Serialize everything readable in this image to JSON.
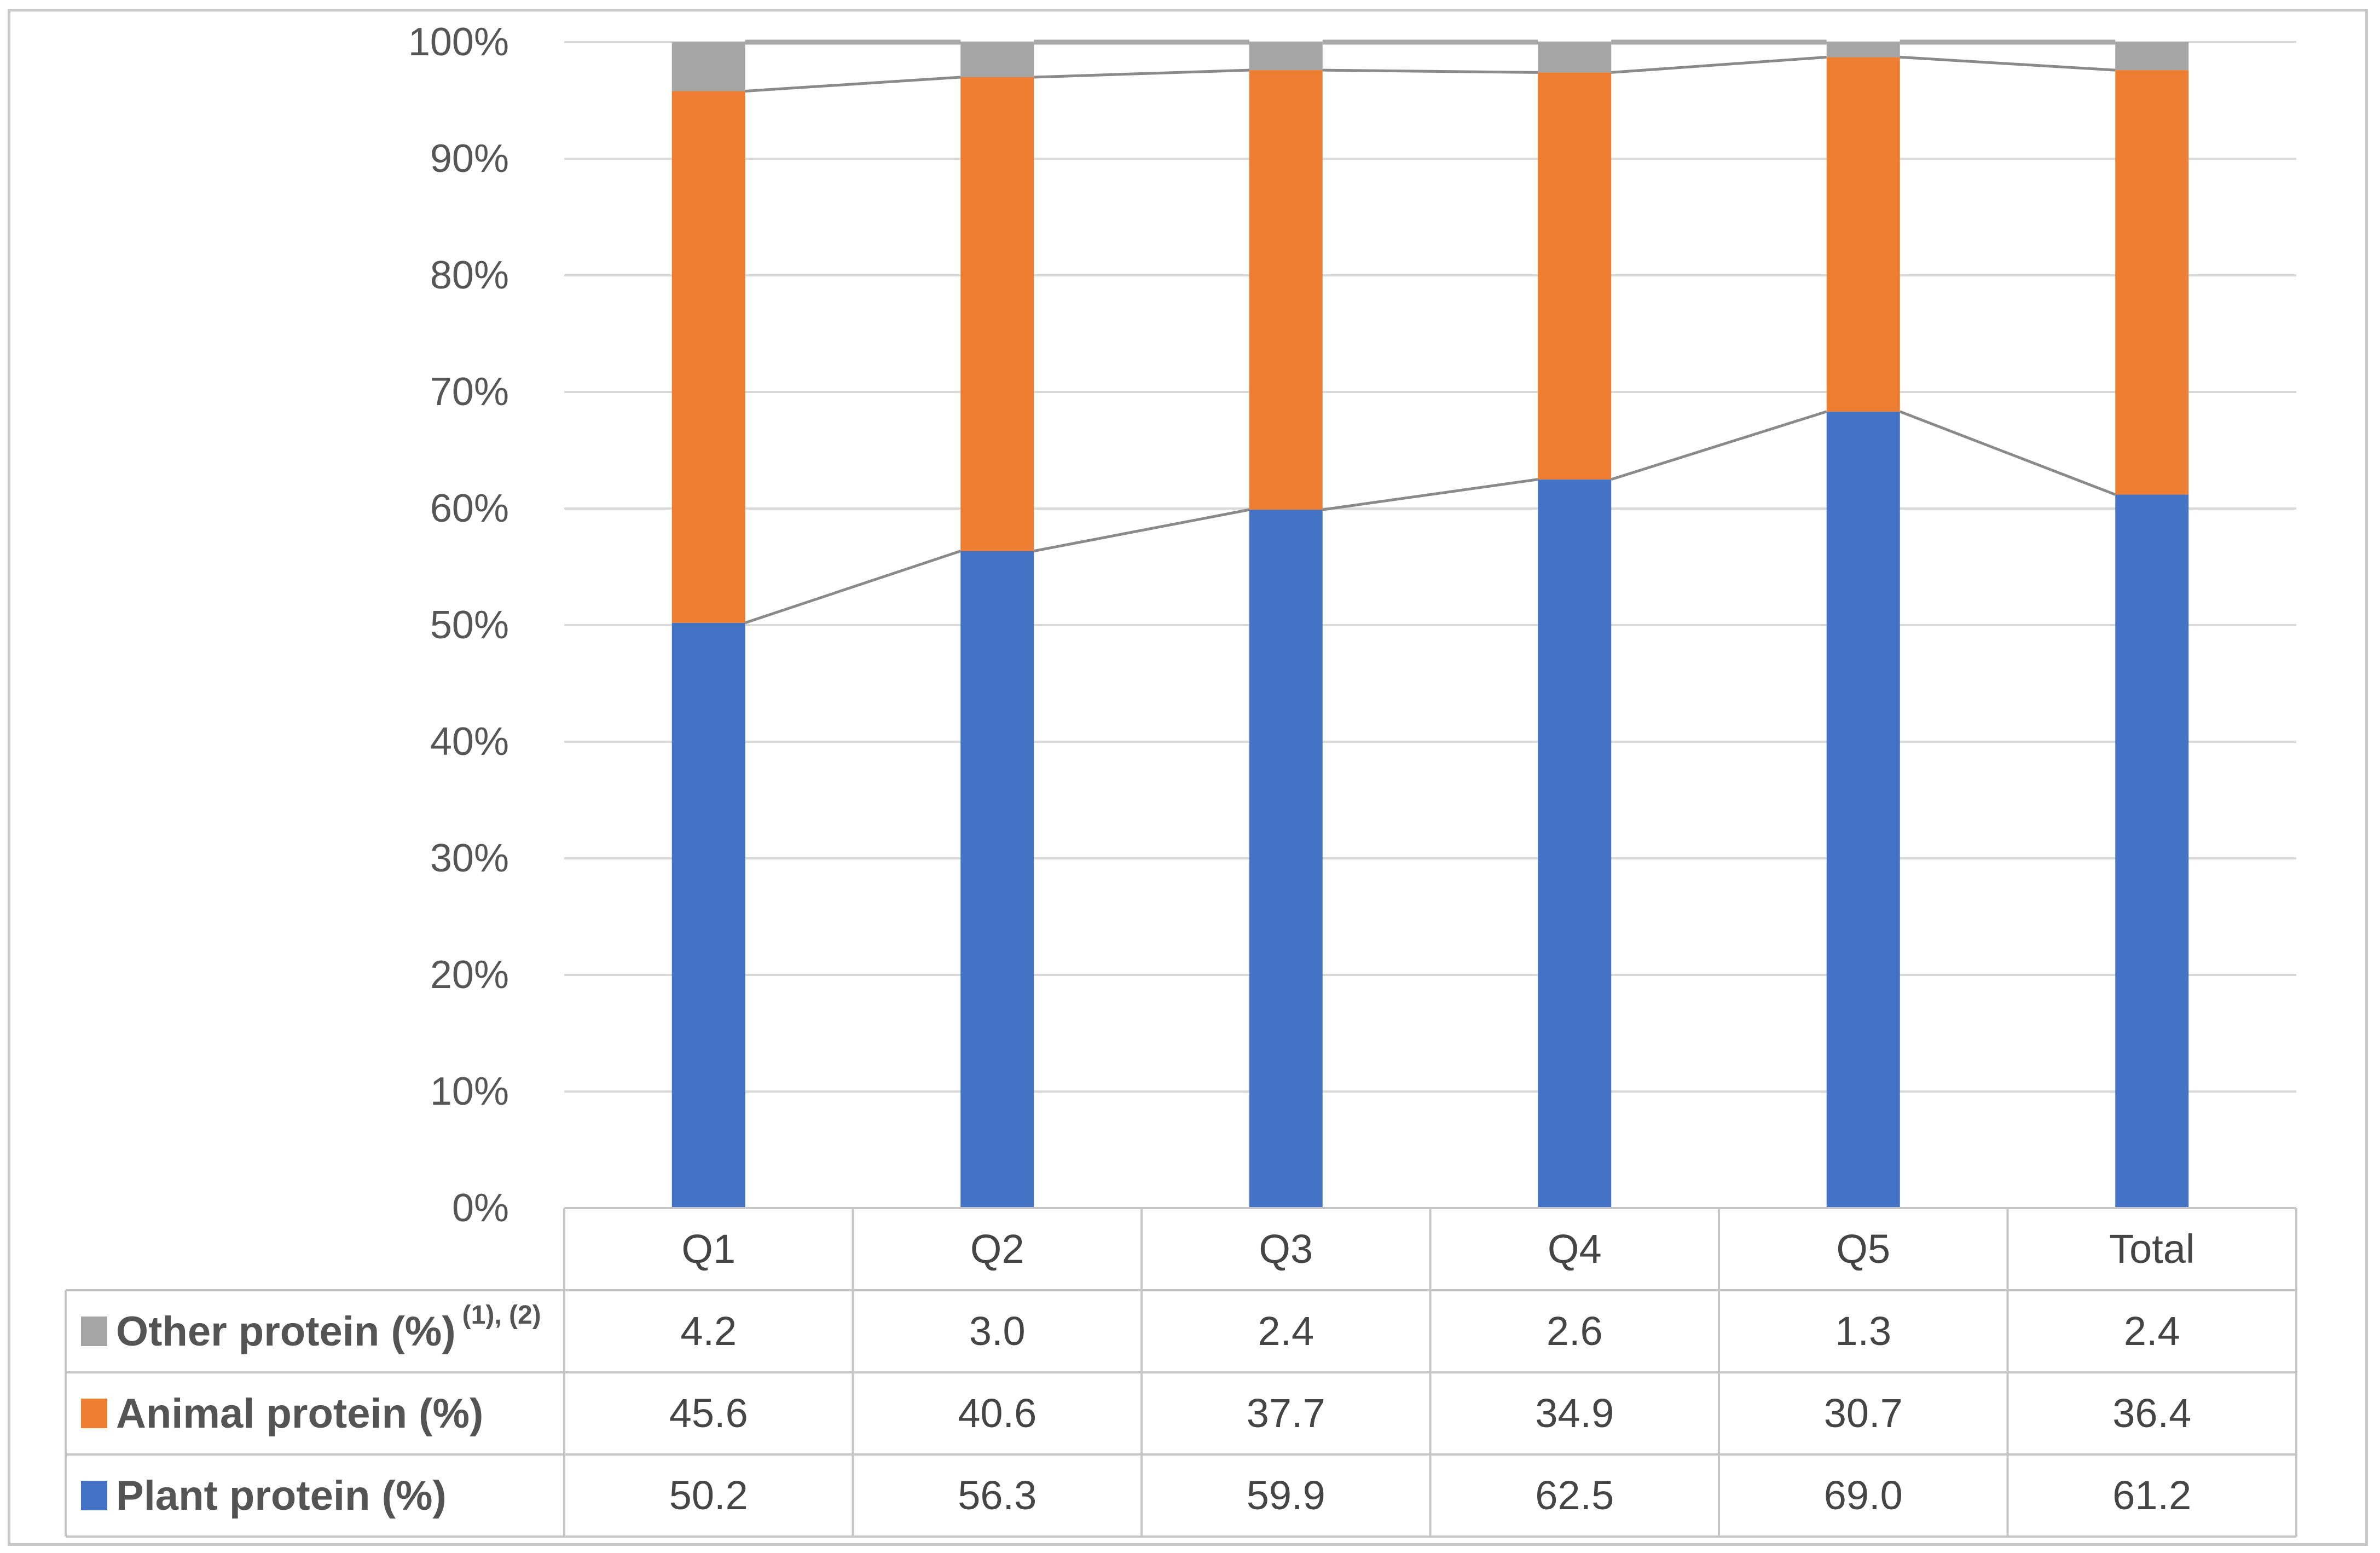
{
  "chart_data": {
    "type": "bar",
    "subtype": "stacked-100-percent-column-with-series-lines",
    "title": "",
    "xlabel": "",
    "ylabel": "",
    "categories": [
      "Q1",
      "Q2",
      "Q3",
      "Q4",
      "Q5",
      "Total"
    ],
    "series": [
      {
        "name": "Plant protein (%)",
        "color": "#4472C4",
        "values": [
          50.2,
          56.3,
          59.9,
          62.5,
          69.0,
          61.2
        ]
      },
      {
        "name": "Animal protein (%)",
        "color": "#ED7D31",
        "values": [
          45.6,
          40.6,
          37.7,
          34.9,
          30.7,
          36.4
        ]
      },
      {
        "name": "Other protein (%)",
        "name_superscript": "(1), (2)",
        "color": "#A5A5A5",
        "values": [
          4.2,
          3.0,
          2.4,
          2.6,
          1.3,
          2.4
        ]
      }
    ],
    "ylim": [
      0,
      100
    ],
    "y_tick_labels": [
      "0%",
      "10%",
      "20%",
      "30%",
      "40%",
      "50%",
      "60%",
      "70%",
      "80%",
      "90%",
      "100%"
    ],
    "grid": true,
    "series_lines": true,
    "legend_position": "data-table-left"
  },
  "data_table": {
    "column_headers": [
      "Q1",
      "Q2",
      "Q3",
      "Q4",
      "Q5",
      "Total"
    ],
    "rows": [
      {
        "label": "Other protein (%)",
        "superscript": "(1), (2)",
        "swatch_color": "#A5A5A5",
        "values": [
          "4.2",
          "3.0",
          "2.4",
          "2.6",
          "1.3",
          "2.4"
        ]
      },
      {
        "label": "Animal protein (%)",
        "superscript": "",
        "swatch_color": "#ED7D31",
        "values": [
          "45.6",
          "40.6",
          "37.7",
          "34.9",
          "30.7",
          "36.4"
        ]
      },
      {
        "label": "Plant protein (%)",
        "superscript": "",
        "swatch_color": "#4472C4",
        "values": [
          "50.2",
          "56.3",
          "59.9",
          "62.5",
          "69.0",
          "61.2"
        ]
      }
    ]
  },
  "style_colors": {
    "plant_blue": "#4472C4",
    "animal_orange": "#ED7D31",
    "other_gray": "#A5A5A5",
    "gridline": "#D9D9D9",
    "series_line": "#8A8A8A",
    "series_line_top": "#A8A8A8",
    "table_border": "#C6C6C6",
    "axis_text": "#565656",
    "table_text": "#454545",
    "frame_border": "#C9C9C9"
  }
}
